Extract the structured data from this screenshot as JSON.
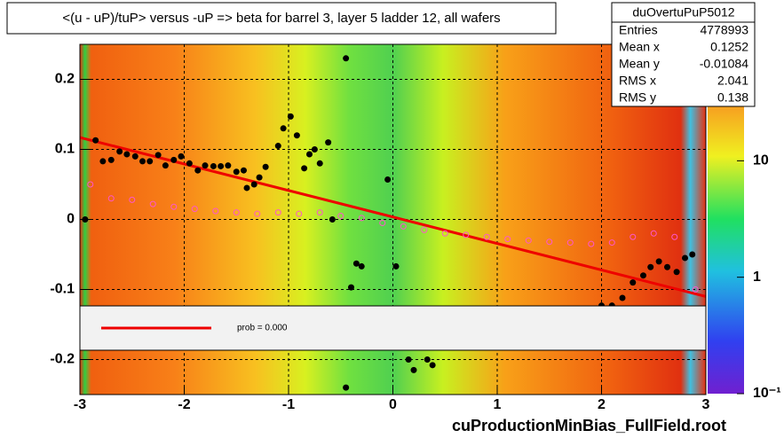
{
  "chart_data": {
    "type": "scatter",
    "title": "<(u - uP)/tuP> versus  -uP => beta for barrel 3, layer 5 ladder 12, all wafers",
    "footer": "cuProductionMinBias_FullField.root",
    "xlim": [
      -3,
      3
    ],
    "xticks": [
      -3,
      -2,
      -1,
      0,
      1,
      2,
      3
    ],
    "ylim": [
      -0.25,
      0.25
    ],
    "yticks": [
      -0.2,
      -0.1,
      0,
      0.1,
      0.2
    ],
    "grid": true,
    "zlim": [
      0.1,
      100
    ],
    "zscale": "log",
    "zticks": [
      {
        "value": 0.1,
        "label": "10⁻¹"
      },
      1,
      10
    ],
    "stats": {
      "name": "duOvertuPuP5012",
      "rows": [
        [
          "Entries",
          4778993
        ],
        [
          "Mean x",
          0.1252
        ],
        [
          "Mean y",
          -0.01084
        ],
        [
          "RMS x",
          2.041
        ],
        [
          "RMS y",
          0.138
        ]
      ]
    },
    "legend": {
      "label": "prob = 0.000"
    },
    "fit": {
      "color": "#ee0000",
      "x": [
        -3,
        3
      ],
      "y": [
        0.117,
        -0.11
      ]
    },
    "series": [
      {
        "color": "#000000",
        "marker": "dot",
        "x": [
          -2.95,
          -2.85,
          -2.78,
          -2.7,
          -2.62,
          -2.55,
          -2.47,
          -2.4,
          -2.33,
          -2.25,
          -2.18,
          -2.1,
          -2.03,
          -1.95,
          -1.87,
          -1.8,
          -1.72,
          -1.65,
          -1.58,
          -1.5,
          -1.43,
          -1.4,
          -1.33,
          -1.28,
          -1.22,
          -1.1,
          -1.05,
          -0.98,
          -0.92,
          -0.85,
          -0.8,
          -0.75,
          -0.7,
          -0.62,
          -0.58,
          -0.45,
          -0.4,
          -0.35,
          -0.3,
          -0.05,
          0.03,
          0.15,
          0.2,
          0.33,
          0.38,
          -0.45,
          2.0,
          2.1,
          2.2,
          2.3,
          2.4,
          2.47,
          2.55,
          2.63,
          2.72,
          2.8,
          2.87
        ],
        "y": [
          0.0,
          0.113,
          0.083,
          0.085,
          0.097,
          0.093,
          0.09,
          0.083,
          0.083,
          0.092,
          0.077,
          0.085,
          0.09,
          0.08,
          0.07,
          0.077,
          0.076,
          0.076,
          0.077,
          0.068,
          0.07,
          0.045,
          0.05,
          0.06,
          0.075,
          0.105,
          0.13,
          0.147,
          0.12,
          0.073,
          0.093,
          0.1,
          0.08,
          0.11,
          0.0,
          0.23,
          -0.097,
          -0.063,
          -0.067,
          0.057,
          -0.067,
          -0.2,
          -0.215,
          -0.2,
          -0.208,
          -0.24,
          -0.123,
          -0.123,
          -0.112,
          -0.09,
          -0.08,
          -0.068,
          -0.06,
          -0.068,
          -0.075,
          -0.055,
          -0.05
        ]
      },
      {
        "color": "#ff55cc",
        "marker": "circle",
        "x": [
          -2.9,
          -2.7,
          -2.5,
          -2.3,
          -2.1,
          -1.9,
          -1.7,
          -1.5,
          -1.3,
          -1.1,
          -0.9,
          -0.7,
          -0.5,
          -0.3,
          -0.1,
          0.1,
          0.3,
          0.5,
          0.7,
          0.9,
          1.1,
          1.3,
          1.5,
          1.7,
          1.9,
          2.1,
          2.3,
          2.5,
          2.7,
          2.9
        ],
        "y": [
          0.05,
          0.03,
          0.028,
          0.022,
          0.018,
          0.015,
          0.012,
          0.01,
          0.008,
          0.01,
          0.008,
          0.01,
          0.005,
          0.002,
          -0.005,
          -0.01,
          -0.015,
          -0.02,
          -0.022,
          -0.025,
          -0.028,
          -0.03,
          -0.032,
          -0.033,
          -0.035,
          -0.033,
          -0.025,
          -0.02,
          -0.025,
          -0.1
        ]
      }
    ]
  }
}
